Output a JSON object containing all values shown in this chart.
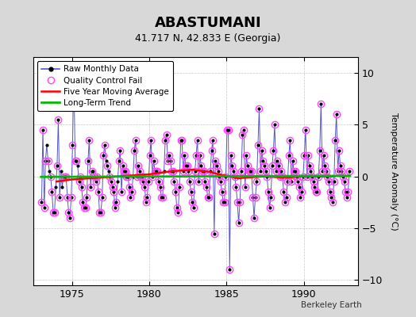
{
  "title": "ABASTUMANI",
  "subtitle": "41.717 N, 42.833 E (Georgia)",
  "ylabel": "Temperature Anomaly (°C)",
  "credit": "Berkeley Earth",
  "xlim": [
    1972.5,
    1993.5
  ],
  "ylim": [
    -10.5,
    11.5
  ],
  "yticks": [
    -10,
    -5,
    0,
    5,
    10
  ],
  "xticks": [
    1975,
    1980,
    1985,
    1990
  ],
  "bg_color": "#d8d8d8",
  "plot_bg_color": "#ffffff",
  "raw_color": "#5555cc",
  "raw_marker_color": "#000000",
  "qc_color": "#ff44ff",
  "moving_avg_color": "#ff0000",
  "trend_color": "#00bb00",
  "raw_data": [
    [
      1973.04,
      -2.5
    ],
    [
      1973.12,
      4.5
    ],
    [
      1973.21,
      -3.0
    ],
    [
      1973.29,
      1.5
    ],
    [
      1973.37,
      3.0
    ],
    [
      1973.46,
      1.5
    ],
    [
      1973.54,
      0.5
    ],
    [
      1973.62,
      0.0
    ],
    [
      1973.71,
      -1.5
    ],
    [
      1973.79,
      -3.5
    ],
    [
      1973.87,
      -3.5
    ],
    [
      1973.96,
      -1.0
    ],
    [
      1974.04,
      1.0
    ],
    [
      1974.12,
      5.5
    ],
    [
      1974.21,
      -2.0
    ],
    [
      1974.29,
      0.5
    ],
    [
      1974.37,
      -1.0
    ],
    [
      1974.46,
      0.0
    ],
    [
      1974.54,
      0.0
    ],
    [
      1974.62,
      0.0
    ],
    [
      1974.71,
      -2.0
    ],
    [
      1974.79,
      -3.5
    ],
    [
      1974.87,
      -4.0
    ],
    [
      1974.96,
      -2.0
    ],
    [
      1975.04,
      3.0
    ],
    [
      1975.12,
      10.0
    ],
    [
      1975.21,
      1.5
    ],
    [
      1975.29,
      1.5
    ],
    [
      1975.37,
      1.0
    ],
    [
      1975.46,
      -0.5
    ],
    [
      1975.54,
      0.0
    ],
    [
      1975.62,
      -1.0
    ],
    [
      1975.71,
      -2.5
    ],
    [
      1975.79,
      -3.0
    ],
    [
      1975.87,
      -3.0
    ],
    [
      1975.96,
      -2.0
    ],
    [
      1976.04,
      1.5
    ],
    [
      1976.12,
      3.5
    ],
    [
      1976.21,
      -1.0
    ],
    [
      1976.29,
      0.5
    ],
    [
      1976.37,
      0.5
    ],
    [
      1976.46,
      0.0
    ],
    [
      1976.54,
      -0.5
    ],
    [
      1976.62,
      0.0
    ],
    [
      1976.71,
      -1.5
    ],
    [
      1976.79,
      -3.5
    ],
    [
      1976.87,
      -3.5
    ],
    [
      1976.96,
      -2.0
    ],
    [
      1977.04,
      2.0
    ],
    [
      1977.12,
      3.0
    ],
    [
      1977.21,
      1.5
    ],
    [
      1977.29,
      1.0
    ],
    [
      1977.37,
      0.5
    ],
    [
      1977.46,
      0.0
    ],
    [
      1977.54,
      -0.5
    ],
    [
      1977.62,
      -1.0
    ],
    [
      1977.71,
      -1.5
    ],
    [
      1977.79,
      -3.0
    ],
    [
      1977.87,
      -2.5
    ],
    [
      1977.96,
      -0.5
    ],
    [
      1978.04,
      1.5
    ],
    [
      1978.12,
      2.5
    ],
    [
      1978.21,
      -1.5
    ],
    [
      1978.29,
      1.0
    ],
    [
      1978.37,
      0.5
    ],
    [
      1978.46,
      0.5
    ],
    [
      1978.54,
      0.0
    ],
    [
      1978.62,
      0.0
    ],
    [
      1978.71,
      -1.0
    ],
    [
      1978.79,
      -2.0
    ],
    [
      1978.87,
      -1.5
    ],
    [
      1978.96,
      0.0
    ],
    [
      1979.04,
      2.5
    ],
    [
      1979.12,
      3.5
    ],
    [
      1979.21,
      0.0
    ],
    [
      1979.29,
      1.0
    ],
    [
      1979.37,
      0.5
    ],
    [
      1979.46,
      0.0
    ],
    [
      1979.54,
      0.0
    ],
    [
      1979.62,
      -0.5
    ],
    [
      1979.71,
      -1.0
    ],
    [
      1979.79,
      -2.5
    ],
    [
      1979.87,
      -2.0
    ],
    [
      1979.96,
      -0.5
    ],
    [
      1980.04,
      2.0
    ],
    [
      1980.12,
      3.5
    ],
    [
      1980.21,
      0.0
    ],
    [
      1980.29,
      1.5
    ],
    [
      1980.37,
      0.5
    ],
    [
      1980.46,
      0.5
    ],
    [
      1980.54,
      0.5
    ],
    [
      1980.62,
      -0.5
    ],
    [
      1980.71,
      -1.0
    ],
    [
      1980.79,
      -2.0
    ],
    [
      1980.87,
      -2.0
    ],
    [
      1980.96,
      0.5
    ],
    [
      1981.04,
      3.5
    ],
    [
      1981.12,
      4.0
    ],
    [
      1981.21,
      1.5
    ],
    [
      1981.29,
      2.0
    ],
    [
      1981.37,
      1.5
    ],
    [
      1981.46,
      0.5
    ],
    [
      1981.54,
      0.5
    ],
    [
      1981.62,
      -0.5
    ],
    [
      1981.71,
      -1.5
    ],
    [
      1981.79,
      -3.0
    ],
    [
      1981.87,
      -3.5
    ],
    [
      1981.96,
      -1.0
    ],
    [
      1982.04,
      3.5
    ],
    [
      1982.12,
      3.5
    ],
    [
      1982.21,
      0.5
    ],
    [
      1982.29,
      2.0
    ],
    [
      1982.37,
      1.0
    ],
    [
      1982.46,
      1.0
    ],
    [
      1982.54,
      0.5
    ],
    [
      1982.62,
      -0.5
    ],
    [
      1982.71,
      -1.5
    ],
    [
      1982.79,
      -2.5
    ],
    [
      1982.87,
      -3.0
    ],
    [
      1982.96,
      0.5
    ],
    [
      1983.04,
      2.0
    ],
    [
      1983.12,
      3.5
    ],
    [
      1983.21,
      -0.5
    ],
    [
      1983.29,
      2.0
    ],
    [
      1983.37,
      1.0
    ],
    [
      1983.46,
      0.5
    ],
    [
      1983.54,
      0.5
    ],
    [
      1983.62,
      -0.5
    ],
    [
      1983.71,
      -1.0
    ],
    [
      1983.79,
      -2.0
    ],
    [
      1983.87,
      -2.0
    ],
    [
      1983.96,
      0.5
    ],
    [
      1984.04,
      2.5
    ],
    [
      1984.12,
      3.5
    ],
    [
      1984.21,
      -5.5
    ],
    [
      1984.29,
      1.5
    ],
    [
      1984.37,
      1.0
    ],
    [
      1984.46,
      0.5
    ],
    [
      1984.54,
      0.0
    ],
    [
      1984.62,
      -0.5
    ],
    [
      1984.71,
      -1.5
    ],
    [
      1984.79,
      -2.5
    ],
    [
      1984.87,
      -2.5
    ],
    [
      1984.96,
      0.0
    ],
    [
      1985.04,
      4.5
    ],
    [
      1985.12,
      4.5
    ],
    [
      1985.21,
      -9.0
    ],
    [
      1985.29,
      2.0
    ],
    [
      1985.37,
      1.0
    ],
    [
      1985.46,
      0.5
    ],
    [
      1985.54,
      0.0
    ],
    [
      1985.62,
      -1.0
    ],
    [
      1985.71,
      -2.5
    ],
    [
      1985.79,
      -4.5
    ],
    [
      1985.87,
      -2.5
    ],
    [
      1985.96,
      0.5
    ],
    [
      1986.04,
      4.0
    ],
    [
      1986.12,
      4.5
    ],
    [
      1986.21,
      -1.0
    ],
    [
      1986.29,
      2.0
    ],
    [
      1986.37,
      1.0
    ],
    [
      1986.46,
      0.5
    ],
    [
      1986.54,
      0.5
    ],
    [
      1986.62,
      0.5
    ],
    [
      1986.71,
      -2.0
    ],
    [
      1986.79,
      -4.0
    ],
    [
      1986.87,
      -2.0
    ],
    [
      1986.96,
      -0.5
    ],
    [
      1987.04,
      3.0
    ],
    [
      1987.12,
      6.5
    ],
    [
      1987.21,
      0.5
    ],
    [
      1987.29,
      2.5
    ],
    [
      1987.37,
      1.5
    ],
    [
      1987.46,
      1.0
    ],
    [
      1987.54,
      0.5
    ],
    [
      1987.62,
      0.0
    ],
    [
      1987.71,
      -1.5
    ],
    [
      1987.79,
      -3.0
    ],
    [
      1987.87,
      -2.0
    ],
    [
      1987.96,
      1.0
    ],
    [
      1988.04,
      2.5
    ],
    [
      1988.12,
      5.0
    ],
    [
      1988.21,
      0.5
    ],
    [
      1988.29,
      1.5
    ],
    [
      1988.37,
      1.0
    ],
    [
      1988.46,
      0.0
    ],
    [
      1988.54,
      0.5
    ],
    [
      1988.62,
      0.0
    ],
    [
      1988.71,
      -1.5
    ],
    [
      1988.79,
      -2.5
    ],
    [
      1988.87,
      -2.0
    ],
    [
      1988.96,
      -0.5
    ],
    [
      1989.04,
      2.0
    ],
    [
      1989.12,
      3.5
    ],
    [
      1989.21,
      -0.5
    ],
    [
      1989.29,
      1.5
    ],
    [
      1989.37,
      0.5
    ],
    [
      1989.46,
      0.5
    ],
    [
      1989.54,
      0.0
    ],
    [
      1989.62,
      -0.5
    ],
    [
      1989.71,
      -1.0
    ],
    [
      1989.79,
      -2.0
    ],
    [
      1989.87,
      -1.5
    ],
    [
      1989.96,
      0.0
    ],
    [
      1990.04,
      2.0
    ],
    [
      1990.12,
      4.5
    ],
    [
      1990.21,
      0.0
    ],
    [
      1990.29,
      2.0
    ],
    [
      1990.37,
      1.0
    ],
    [
      1990.46,
      0.5
    ],
    [
      1990.54,
      0.0
    ],
    [
      1990.62,
      -0.5
    ],
    [
      1990.71,
      -1.0
    ],
    [
      1990.79,
      -1.5
    ],
    [
      1990.87,
      -1.5
    ],
    [
      1990.96,
      0.0
    ],
    [
      1991.04,
      2.5
    ],
    [
      1991.12,
      7.0
    ],
    [
      1991.21,
      0.5
    ],
    [
      1991.29,
      2.0
    ],
    [
      1991.37,
      1.0
    ],
    [
      1991.46,
      0.5
    ],
    [
      1991.54,
      0.0
    ],
    [
      1991.62,
      -0.5
    ],
    [
      1991.71,
      -1.5
    ],
    [
      1991.79,
      -2.0
    ],
    [
      1991.87,
      -2.5
    ],
    [
      1991.96,
      -0.5
    ],
    [
      1992.04,
      3.5
    ],
    [
      1992.12,
      6.0
    ],
    [
      1992.21,
      0.5
    ],
    [
      1992.29,
      2.5
    ],
    [
      1992.37,
      1.0
    ],
    [
      1992.46,
      0.5
    ],
    [
      1992.54,
      0.0
    ],
    [
      1992.62,
      -0.5
    ],
    [
      1992.71,
      -1.5
    ],
    [
      1992.79,
      -2.0
    ],
    [
      1992.87,
      -1.5
    ],
    [
      1992.96,
      0.5
    ]
  ],
  "qc_fail_indices": [
    0,
    1,
    2,
    3,
    5,
    7,
    8,
    9,
    10,
    12,
    13,
    14,
    17,
    18,
    19,
    20,
    21,
    22,
    23,
    24,
    25,
    26,
    27,
    29,
    30,
    31,
    32,
    33,
    34,
    35,
    36,
    37,
    38,
    39,
    41,
    42,
    43,
    44,
    45,
    46,
    47,
    48,
    49,
    51,
    53,
    54,
    55,
    56,
    57,
    58,
    60,
    61,
    62,
    63,
    64,
    65,
    66,
    67,
    68,
    69,
    70,
    72,
    73,
    74,
    75,
    76,
    77,
    78,
    79,
    80,
    81,
    82,
    83,
    84,
    85,
    86,
    87,
    88,
    89,
    90,
    91,
    92,
    93,
    94,
    96,
    97,
    98,
    99,
    100,
    101,
    102,
    103,
    104,
    105,
    106,
    107,
    108,
    109,
    110,
    111,
    112,
    113,
    114,
    115,
    116,
    117,
    118,
    119,
    120,
    121,
    122,
    123,
    124,
    125,
    126,
    127,
    128,
    129,
    130,
    131,
    132,
    133,
    134,
    135,
    136,
    137,
    138,
    139,
    140,
    141,
    142,
    143,
    144,
    145,
    146,
    147,
    148,
    149,
    150,
    151,
    152,
    153,
    154,
    155,
    156,
    157,
    158,
    159,
    160,
    161,
    162,
    163,
    164,
    165,
    166,
    167,
    168,
    169,
    170,
    171,
    172,
    173,
    174,
    175,
    176,
    177,
    178,
    179,
    180,
    181,
    182,
    183,
    184,
    185,
    186,
    187,
    188,
    189,
    190,
    191,
    192,
    193,
    194,
    195,
    196,
    197,
    198,
    199,
    200,
    201,
    202,
    203,
    204,
    205,
    206,
    207,
    208,
    209,
    210,
    211,
    212,
    213,
    214,
    215,
    216,
    217,
    218,
    219,
    220,
    221,
    222,
    223,
    224,
    225,
    226,
    227,
    228,
    229,
    230,
    231,
    232,
    233,
    234,
    235,
    236,
    237,
    238,
    239
  ],
  "moving_avg_data": [
    [
      1974.0,
      -0.5
    ],
    [
      1974.5,
      -0.4
    ],
    [
      1975.0,
      -0.3
    ],
    [
      1975.5,
      -0.25
    ],
    [
      1976.0,
      -0.2
    ],
    [
      1976.5,
      -0.15
    ],
    [
      1977.0,
      -0.1
    ],
    [
      1977.5,
      -0.05
    ],
    [
      1978.0,
      0.0
    ],
    [
      1978.5,
      0.05
    ],
    [
      1979.0,
      0.1
    ],
    [
      1979.5,
      0.15
    ],
    [
      1980.0,
      0.2
    ],
    [
      1980.5,
      0.3
    ],
    [
      1981.0,
      0.4
    ],
    [
      1981.5,
      0.5
    ],
    [
      1982.0,
      0.55
    ],
    [
      1982.5,
      0.6
    ],
    [
      1982.83,
      0.65
    ],
    [
      1983.0,
      0.6
    ],
    [
      1983.5,
      0.5
    ],
    [
      1983.83,
      0.45
    ],
    [
      1984.0,
      0.4
    ],
    [
      1984.5,
      0.2
    ],
    [
      1984.83,
      0.1
    ],
    [
      1985.0,
      0.05
    ],
    [
      1985.5,
      -0.1
    ],
    [
      1985.83,
      -0.2
    ],
    [
      1986.0,
      -0.15
    ],
    [
      1986.5,
      -0.1
    ],
    [
      1987.0,
      -0.05
    ],
    [
      1987.5,
      0.0
    ],
    [
      1988.0,
      -0.05
    ],
    [
      1988.5,
      -0.1
    ],
    [
      1989.0,
      -0.1
    ],
    [
      1989.5,
      -0.05
    ],
    [
      1990.0,
      0.0
    ],
    [
      1990.5,
      0.0
    ],
    [
      1991.0,
      0.0
    ],
    [
      1991.5,
      0.0
    ],
    [
      1992.0,
      0.0
    ]
  ],
  "trend_x": [
    1973.0,
    1993.0
  ],
  "trend_y": [
    -0.05,
    0.05
  ],
  "figsize": [
    5.24,
    4.0
  ],
  "dpi": 100
}
